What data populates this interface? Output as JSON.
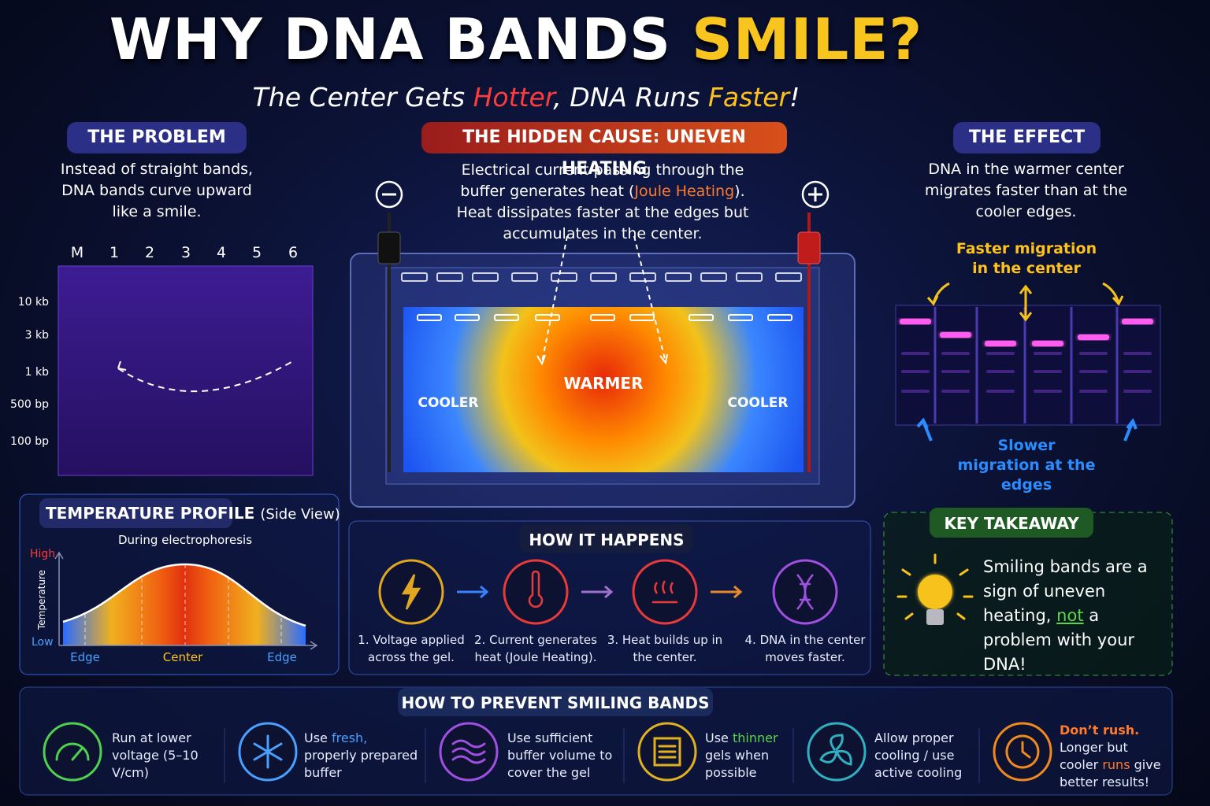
{
  "title": [
    "WHY DNA BANDS ",
    "SMILE?"
  ],
  "subtitle": [
    "The Center Gets ",
    "Hotter",
    ", DNA Runs ",
    "Faster",
    "!"
  ],
  "problem": {
    "heading": "THE PROBLEM",
    "text": "Instead of straight bands, DNA bands curve upward like a smile.",
    "lanes": [
      "M",
      "1",
      "2",
      "3",
      "4",
      "5",
      "6"
    ],
    "sizes": [
      "10 kb",
      "3 kb",
      "1 kb",
      "500 bp",
      "100 bp"
    ]
  },
  "cause": {
    "heading": "THE HIDDEN CAUSE: UNEVEN HEATING",
    "text": [
      "Electrical current passing through the buffer generates heat (",
      "Joule Heating",
      "). Heat dissipates faster at the edges but accumulates in the center."
    ],
    "warmer": "WARMER",
    "cooler_left": "COOLER",
    "cooler_right": "COOLER"
  },
  "effect": {
    "heading": "THE EFFECT",
    "text": "DNA in the warmer center migrates faster than at the cooler edges.",
    "faster": "Faster migration in the center",
    "slower": "Slower migration at the edges"
  },
  "temperature": {
    "heading": "TEMPERATURE PROFILE",
    "heading_note": "(Side View)",
    "subtitle": "During electrophoresis",
    "high": "High",
    "low": "Low",
    "axis": "Temperature",
    "edge_left": "Edge",
    "center": "Center",
    "edge_right": "Edge"
  },
  "how": {
    "heading": "HOW IT HAPPENS",
    "steps": [
      "1. Voltage applied across the gel.",
      "2. Current generates heat (Joule Heating).",
      "3. Heat builds up in the center.",
      "4. DNA in the center moves faster."
    ]
  },
  "takeaway": {
    "heading": "KEY TAKEAWAY",
    "text": [
      "Smiling bands are a sign of uneven heating, ",
      "not",
      " a problem with your DNA!"
    ]
  },
  "prevent": {
    "heading": "HOW TO PREVENT SMILING BANDS",
    "tips": [
      [
        "Run at lower voltage (5–10 V/cm)"
      ],
      [
        "Use ",
        "fresh,",
        " properly prepared buffer"
      ],
      [
        "Use sufficient buffer volume to cover the gel"
      ],
      [
        "Use ",
        "thinner",
        " gels when possible"
      ],
      [
        "Allow proper cooling / use active cooling"
      ],
      [
        "Don’t rush.",
        " Longer but cooler ",
        "runs",
        " give better results!"
      ]
    ]
  }
}
